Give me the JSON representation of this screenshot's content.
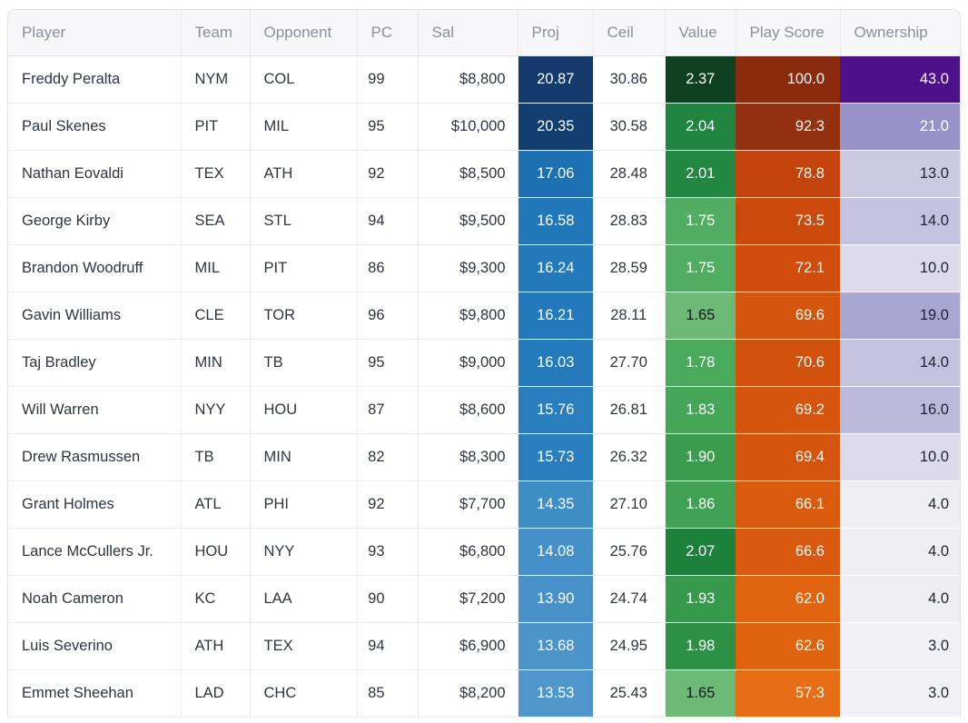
{
  "table": {
    "columns": [
      {
        "key": "player",
        "label": "Player",
        "width": 190,
        "align": "al",
        "kind": "plain"
      },
      {
        "key": "team",
        "label": "Team",
        "width": 76,
        "align": "al",
        "kind": "plain"
      },
      {
        "key": "opponent",
        "label": "Opponent",
        "width": 118,
        "align": "al",
        "kind": "plain"
      },
      {
        "key": "pc",
        "label": "PC",
        "width": 67,
        "align": "ar pc-pad",
        "kind": "plain"
      },
      {
        "key": "sal",
        "label": "Sal",
        "width": 110,
        "align": "ar sal-pad",
        "kind": "plain"
      },
      {
        "key": "proj",
        "label": "Proj",
        "width": 83,
        "align": "ac",
        "kind": "heat"
      },
      {
        "key": "ceil",
        "label": "Ceil",
        "width": 79,
        "align": "ac",
        "kind": "plain"
      },
      {
        "key": "value",
        "label": "Value",
        "width": 78,
        "align": "ac",
        "kind": "heat"
      },
      {
        "key": "play_score",
        "label": "Play Score",
        "width": 115,
        "align": "ar ps-pad",
        "kind": "heat"
      },
      {
        "key": "ownership",
        "label": "Ownership",
        "width": 134,
        "align": "ar",
        "kind": "heat"
      }
    ],
    "rows": [
      [
        {
          "t": "Freddy Peralta"
        },
        {
          "t": "NYM"
        },
        {
          "t": "COL"
        },
        {
          "t": "99"
        },
        {
          "t": "$8,800"
        },
        {
          "t": "20.87",
          "bg": "#133a6b",
          "fg": "#ffffff"
        },
        {
          "t": "30.86"
        },
        {
          "t": "2.37",
          "bg": "#0d4120",
          "fg": "#ffffff"
        },
        {
          "t": "100.0",
          "bg": "#8a2b0d",
          "fg": "#ffffff"
        },
        {
          "t": "43.0",
          "bg": "#4d0f8a",
          "fg": "#ffffff"
        }
      ],
      [
        {
          "t": "Paul Skenes"
        },
        {
          "t": "PIT"
        },
        {
          "t": "MIL"
        },
        {
          "t": "95"
        },
        {
          "t": "$10,000"
        },
        {
          "t": "20.35",
          "bg": "#133e70",
          "fg": "#ffffff"
        },
        {
          "t": "30.58"
        },
        {
          "t": "2.04",
          "bg": "#1f8540",
          "fg": "#ffffff"
        },
        {
          "t": "92.3",
          "bg": "#93300f",
          "fg": "#ffffff"
        },
        {
          "t": "21.0",
          "bg": "#9792c8",
          "fg": "#ffffff"
        }
      ],
      [
        {
          "t": "Nathan Eovaldi"
        },
        {
          "t": "TEX"
        },
        {
          "t": "ATH"
        },
        {
          "t": "92"
        },
        {
          "t": "$8,500"
        },
        {
          "t": "17.06",
          "bg": "#1d70b2",
          "fg": "#ffffff"
        },
        {
          "t": "28.48"
        },
        {
          "t": "2.01",
          "bg": "#228740",
          "fg": "#ffffff"
        },
        {
          "t": "78.8",
          "bg": "#c4430c",
          "fg": "#ffffff"
        },
        {
          "t": "13.0",
          "bg": "#ccc9e3",
          "fg": "#1e2330"
        }
      ],
      [
        {
          "t": "George Kirby"
        },
        {
          "t": "SEA"
        },
        {
          "t": "STL"
        },
        {
          "t": "94"
        },
        {
          "t": "$9,500"
        },
        {
          "t": "16.58",
          "bg": "#2277b8",
          "fg": "#ffffff"
        },
        {
          "t": "28.83"
        },
        {
          "t": "1.75",
          "bg": "#51ad62",
          "fg": "#ffffff"
        },
        {
          "t": "73.5",
          "bg": "#cc4a0c",
          "fg": "#ffffff"
        },
        {
          "t": "14.0",
          "bg": "#c5c2df",
          "fg": "#1e2330"
        }
      ],
      [
        {
          "t": "Brandon Woodruff"
        },
        {
          "t": "MIL"
        },
        {
          "t": "PIT"
        },
        {
          "t": "86"
        },
        {
          "t": "$9,300"
        },
        {
          "t": "16.24",
          "bg": "#2379ba",
          "fg": "#ffffff"
        },
        {
          "t": "28.59"
        },
        {
          "t": "1.75",
          "bg": "#51ad62",
          "fg": "#ffffff"
        },
        {
          "t": "72.1",
          "bg": "#d04d0d",
          "fg": "#ffffff"
        },
        {
          "t": "10.0",
          "bg": "#dcdaeb",
          "fg": "#1e2330"
        }
      ],
      [
        {
          "t": "Gavin Williams"
        },
        {
          "t": "CLE"
        },
        {
          "t": "TOR"
        },
        {
          "t": "96"
        },
        {
          "t": "$9,800"
        },
        {
          "t": "16.21",
          "bg": "#2379ba",
          "fg": "#ffffff"
        },
        {
          "t": "28.11"
        },
        {
          "t": "1.65",
          "bg": "#6cba75",
          "fg": "#15181f"
        },
        {
          "t": "69.6",
          "bg": "#d5540e",
          "fg": "#ffffff"
        },
        {
          "t": "19.0",
          "bg": "#aaa6d2",
          "fg": "#1e2330"
        }
      ],
      [
        {
          "t": "Taj Bradley"
        },
        {
          "t": "MIN"
        },
        {
          "t": "TB"
        },
        {
          "t": "95"
        },
        {
          "t": "$9,000"
        },
        {
          "t": "16.03",
          "bg": "#257abb",
          "fg": "#ffffff"
        },
        {
          "t": "27.70"
        },
        {
          "t": "1.78",
          "bg": "#4aaa5c",
          "fg": "#ffffff"
        },
        {
          "t": "70.6",
          "bg": "#d2510d",
          "fg": "#ffffff"
        },
        {
          "t": "14.0",
          "bg": "#c5c2df",
          "fg": "#1e2330"
        }
      ],
      [
        {
          "t": "Will Warren"
        },
        {
          "t": "NYY"
        },
        {
          "t": "HOU"
        },
        {
          "t": "87"
        },
        {
          "t": "$8,600"
        },
        {
          "t": "15.76",
          "bg": "#2b7ebd",
          "fg": "#ffffff"
        },
        {
          "t": "26.81"
        },
        {
          "t": "1.83",
          "bg": "#45a658",
          "fg": "#ffffff"
        },
        {
          "t": "69.2",
          "bg": "#d5540e",
          "fg": "#ffffff"
        },
        {
          "t": "16.0",
          "bg": "#bcb9da",
          "fg": "#1e2330"
        }
      ],
      [
        {
          "t": "Drew Rasmussen"
        },
        {
          "t": "TB"
        },
        {
          "t": "MIN"
        },
        {
          "t": "82"
        },
        {
          "t": "$8,300"
        },
        {
          "t": "15.73",
          "bg": "#2b7ebd",
          "fg": "#ffffff"
        },
        {
          "t": "26.32"
        },
        {
          "t": "1.90",
          "bg": "#3b9c4e",
          "fg": "#ffffff"
        },
        {
          "t": "69.4",
          "bg": "#d5540e",
          "fg": "#ffffff"
        },
        {
          "t": "10.0",
          "bg": "#dcdaeb",
          "fg": "#1e2330"
        }
      ],
      [
        {
          "t": "Grant Holmes"
        },
        {
          "t": "ATL"
        },
        {
          "t": "PHI"
        },
        {
          "t": "92"
        },
        {
          "t": "$7,700"
        },
        {
          "t": "14.35",
          "bg": "#3f8dc5",
          "fg": "#ffffff"
        },
        {
          "t": "27.10"
        },
        {
          "t": "1.86",
          "bg": "#41a253",
          "fg": "#ffffff"
        },
        {
          "t": "66.1",
          "bg": "#da5a0e",
          "fg": "#ffffff"
        },
        {
          "t": "4.0",
          "bg": "#efeef5",
          "fg": "#1e2330"
        }
      ],
      [
        {
          "t": "Lance McCullers Jr."
        },
        {
          "t": "HOU"
        },
        {
          "t": "NYY"
        },
        {
          "t": "93"
        },
        {
          "t": "$6,800"
        },
        {
          "t": "14.08",
          "bg": "#4590c8",
          "fg": "#ffffff"
        },
        {
          "t": "25.76"
        },
        {
          "t": "2.07",
          "bg": "#1d813b",
          "fg": "#ffffff"
        },
        {
          "t": "66.6",
          "bg": "#d95a0e",
          "fg": "#ffffff"
        },
        {
          "t": "4.0",
          "bg": "#efeef5",
          "fg": "#1e2330"
        }
      ],
      [
        {
          "t": "Noah Cameron"
        },
        {
          "t": "KC"
        },
        {
          "t": "LAA"
        },
        {
          "t": "90"
        },
        {
          "t": "$7,200"
        },
        {
          "t": "13.90",
          "bg": "#4892c9",
          "fg": "#ffffff"
        },
        {
          "t": "24.74"
        },
        {
          "t": "1.93",
          "bg": "#37994b",
          "fg": "#ffffff"
        },
        {
          "t": "62.0",
          "bg": "#e16410",
          "fg": "#ffffff"
        },
        {
          "t": "4.0",
          "bg": "#efeef5",
          "fg": "#1e2330"
        }
      ],
      [
        {
          "t": "Luis Severino"
        },
        {
          "t": "ATH"
        },
        {
          "t": "TEX"
        },
        {
          "t": "94"
        },
        {
          "t": "$6,900"
        },
        {
          "t": "13.68",
          "bg": "#4b94ca",
          "fg": "#ffffff"
        },
        {
          "t": "24.95"
        },
        {
          "t": "1.98",
          "bg": "#2d9145",
          "fg": "#ffffff"
        },
        {
          "t": "62.6",
          "bg": "#e06310",
          "fg": "#ffffff"
        },
        {
          "t": "3.0",
          "bg": "#f2f1f7",
          "fg": "#1e2330"
        }
      ],
      [
        {
          "t": "Emmet Sheehan"
        },
        {
          "t": "LAD"
        },
        {
          "t": "CHC"
        },
        {
          "t": "85"
        },
        {
          "t": "$8,200"
        },
        {
          "t": "13.53",
          "bg": "#4e96cb",
          "fg": "#ffffff"
        },
        {
          "t": "25.43"
        },
        {
          "t": "1.65",
          "bg": "#6cba75",
          "fg": "#15181f"
        },
        {
          "t": "57.3",
          "bg": "#e76e16",
          "fg": "#ffffff"
        },
        {
          "t": "3.0",
          "bg": "#f2f1f7",
          "fg": "#1e2330"
        }
      ]
    ]
  }
}
